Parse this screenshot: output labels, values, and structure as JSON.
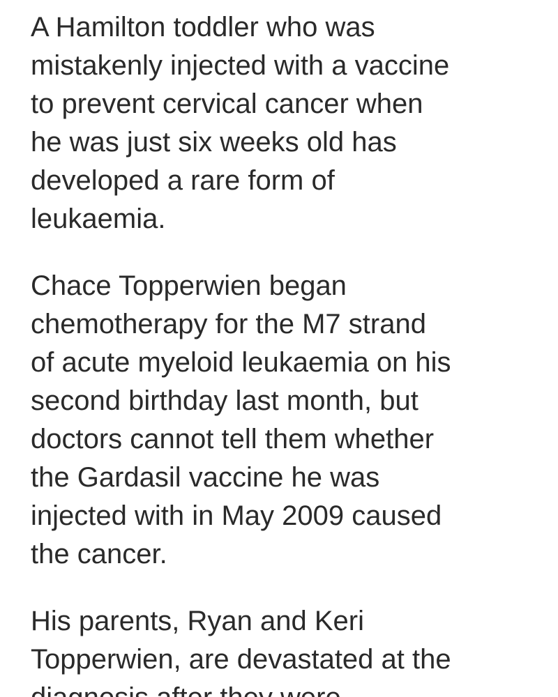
{
  "article": {
    "paragraphs": [
      {
        "lines": [
          "A Hamilton toddler who was",
          "mistakenly injected with a vaccine",
          "to prevent cervical cancer when",
          "he was just six weeks old has",
          "developed a rare form of",
          "leukaemia."
        ]
      },
      {
        "lines": [
          "Chace Topperwien began",
          "chemotherapy for the M7 strand",
          "of acute myeloid leukaemia on his",
          "second birthday last month, but",
          "doctors cannot tell them whether",
          "the Gardasil vaccine he was",
          "injected with in May 2009 caused",
          "the cancer."
        ]
      },
      {
        "lines": [
          "His parents, Ryan and Keri",
          "Topperwien, are devastated at the",
          "diagnosis after they were"
        ]
      }
    ]
  }
}
